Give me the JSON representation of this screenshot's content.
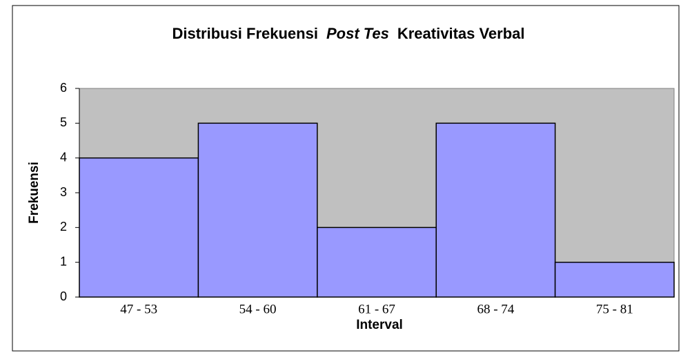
{
  "chart_data": {
    "type": "bar",
    "title": [
      {
        "text": "Distribusi Frekuensi",
        "italic": false
      },
      {
        "text": "Post Tes",
        "italic": true
      },
      {
        "text": "Kreativitas Verbal",
        "italic": false
      }
    ],
    "x_label": "Interval",
    "y_label": "Frekuensi",
    "categories": [
      "47 - 53",
      "54 - 60",
      "61 - 67",
      "68 - 74",
      "75 - 81"
    ],
    "values": [
      4,
      5,
      2,
      5,
      1
    ],
    "color": "#9999ff",
    "plot_background": "#c0c0c0",
    "ylim": [
      0,
      6
    ],
    "yticks": [
      0,
      1,
      2,
      3,
      4,
      5,
      6
    ],
    "grid": false
  }
}
